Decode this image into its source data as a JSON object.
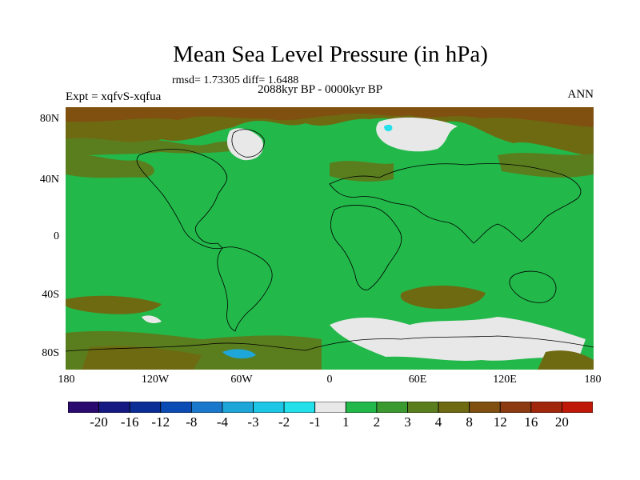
{
  "figure": {
    "title": "Mean Sea Level Pressure (in hPa)",
    "stats": "rmsd= 1.73305 diff= 1.6488",
    "period": "2088kyr BP - 0000kyr BP",
    "experiment": "Expt = xqfvS-xqfua",
    "season": "ANN"
  },
  "axes": {
    "lat_labels": [
      "80N",
      "40N",
      "0",
      "40S",
      "80S"
    ],
    "lon_labels": [
      "180",
      "120W",
      "60W",
      "0",
      "60E",
      "120E",
      "180"
    ]
  },
  "colorbar": {
    "labels": [
      "-20",
      "-16",
      "-12",
      "-8",
      "-4",
      "-3",
      "-2",
      "-1",
      "1",
      "2",
      "3",
      "4",
      "8",
      "12",
      "16",
      "20"
    ],
    "colors": [
      "#2a0a6e",
      "#141a82",
      "#0a2d96",
      "#0a4bb4",
      "#1a78cc",
      "#1fa6d8",
      "#1ec6e6",
      "#23e0ea",
      "#e8e8e8",
      "#22b84a",
      "#3a9a30",
      "#5a7e1e",
      "#6e6a12",
      "#7f5010",
      "#8c3a10",
      "#a0260c",
      "#c01808"
    ]
  },
  "map_colors": {
    "ocean_base": "#22b84a",
    "positive_2_3": "#3a9a30",
    "positive_3_4": "#5a7e1e",
    "positive_4_8": "#6e6a12",
    "positive_8_12": "#7f5010",
    "near_zero": "#e8e8e8",
    "negative_1_2": "#23e0ea",
    "negative_3_4": "#1fa6d8",
    "coastline": "#000000"
  }
}
